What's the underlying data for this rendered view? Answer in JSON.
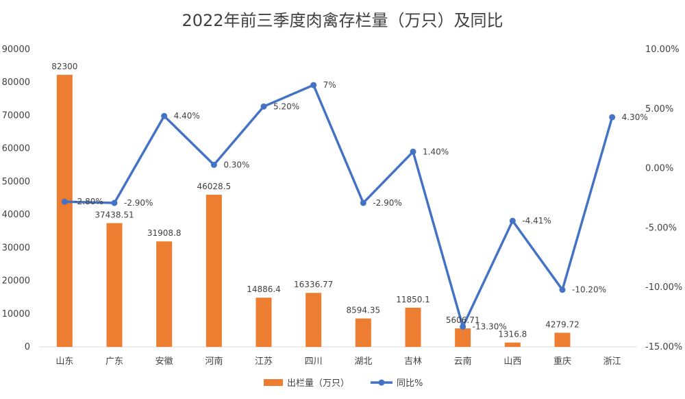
{
  "chart_data": {
    "type": "bar",
    "title": "2022年前三季度肉禽存栏量（万只）及同比",
    "categories": [
      "山东",
      "广东",
      "安徽",
      "河南",
      "江苏",
      "四川",
      "湖北",
      "吉林",
      "云南",
      "山西",
      "重庆",
      "浙江"
    ],
    "series": [
      {
        "name": "出栏量（万只）",
        "type": "bar",
        "axis": "left",
        "color": "#ED7D31",
        "values": [
          82300,
          37438.51,
          31908.8,
          46028.5,
          14886.4,
          16336.77,
          8594.35,
          11850.1,
          5606.71,
          1316.8,
          4279.72,
          null
        ],
        "labels": [
          "82300",
          "37438.51",
          "31908.8",
          "46028.5",
          "14886.4",
          "16336.77",
          "8594.35",
          "11850.1",
          "5606.71",
          "1316.8",
          "4279.72",
          ""
        ]
      },
      {
        "name": "同比%",
        "type": "line",
        "axis": "right",
        "color": "#4472C4",
        "values": [
          -2.8,
          -2.9,
          4.4,
          0.3,
          5.2,
          7,
          -2.9,
          1.4,
          -13.3,
          -4.41,
          -10.2,
          4.3
        ],
        "labels": [
          "-2.80%",
          "-2.90%",
          "4.40%",
          "0.30%",
          "5.20%",
          "7%",
          "-2.90%",
          "1.40%",
          "-13.30%",
          "-4.41%",
          "-10.20%",
          "4.30%"
        ]
      }
    ],
    "y_left": {
      "ylim": [
        0,
        90000
      ],
      "ticks": [
        "0",
        "10000",
        "20000",
        "30000",
        "40000",
        "50000",
        "60000",
        "70000",
        "80000",
        "90000"
      ]
    },
    "y_right": {
      "ylim": [
        -15,
        10
      ],
      "ticks": [
        "-15.00%",
        "-10.00%",
        "-5.00%",
        "0.00%",
        "5.00%",
        "10.00%"
      ]
    },
    "grid": false,
    "legend": "bottom"
  }
}
